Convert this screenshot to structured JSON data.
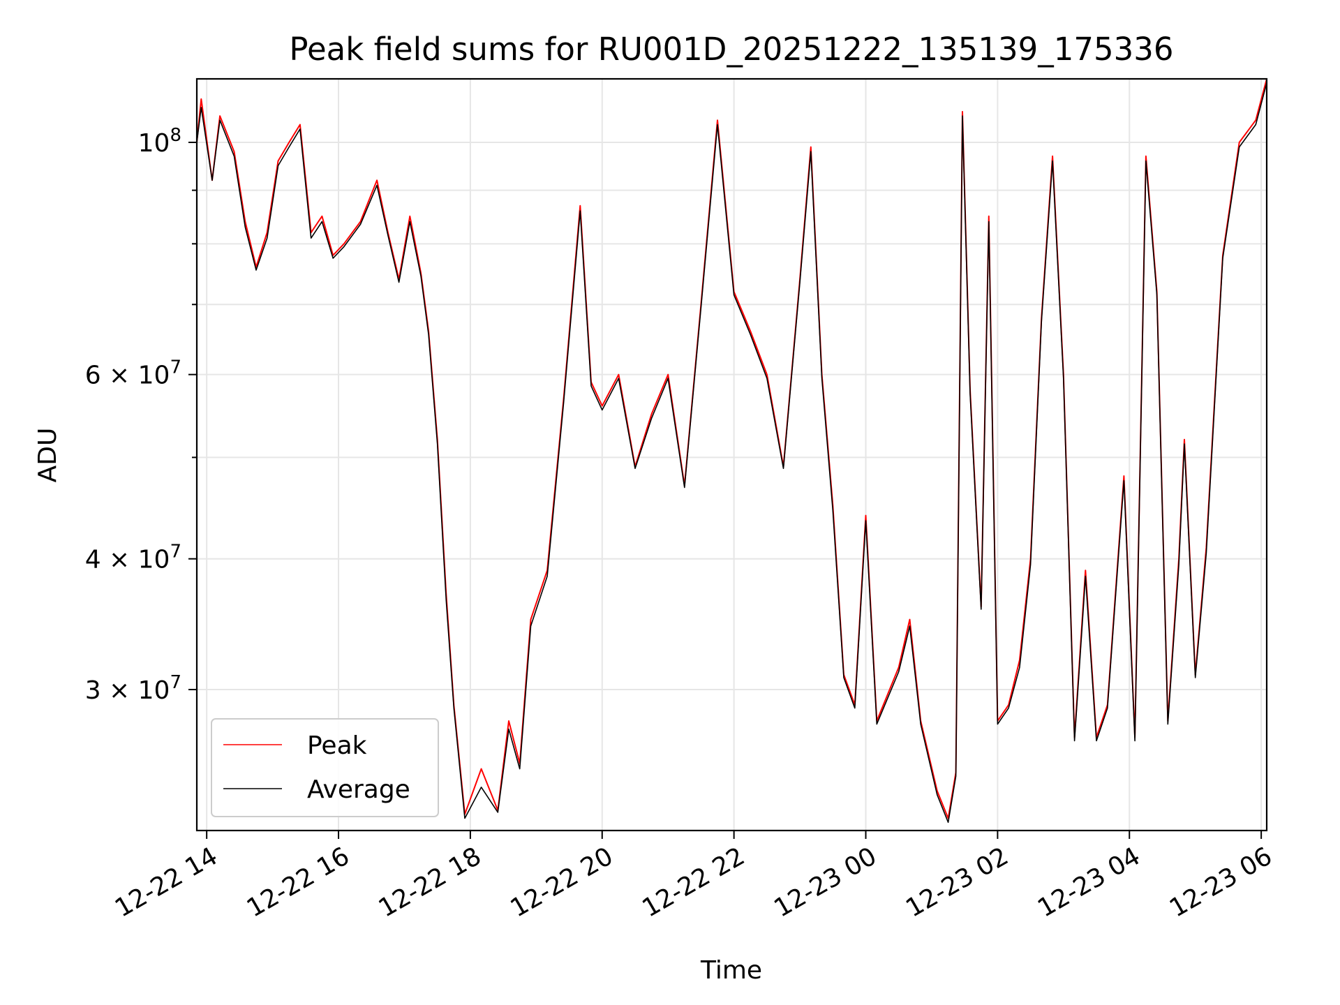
{
  "chart_data": {
    "type": "line",
    "title": "Peak field sums for RU001D_20251222_135139_175336",
    "xlabel": "Time",
    "ylabel": "ADU",
    "y_scale": "log",
    "xlim": [
      "2025-12-22 13:51",
      "2025-12-23 06:05"
    ],
    "ylim": [
      22000000,
      115000000
    ],
    "grid": true,
    "legend_position": "lower-left",
    "x_ticks": [
      {
        "value": "2025-12-22 14:00",
        "label": "12-22 14"
      },
      {
        "value": "2025-12-22 16:00",
        "label": "12-22 16"
      },
      {
        "value": "2025-12-22 18:00",
        "label": "12-22 18"
      },
      {
        "value": "2025-12-22 20:00",
        "label": "12-22 20"
      },
      {
        "value": "2025-12-22 22:00",
        "label": "12-22 22"
      },
      {
        "value": "2025-12-23 00:00",
        "label": "12-23 00"
      },
      {
        "value": "2025-12-23 02:00",
        "label": "12-23 02"
      },
      {
        "value": "2025-12-23 04:00",
        "label": "12-23 04"
      },
      {
        "value": "2025-12-23 06:00",
        "label": "12-23 06"
      }
    ],
    "y_major_ticks": [
      {
        "value": 30000000,
        "mantissa": "3",
        "exponent": "7"
      },
      {
        "value": 40000000,
        "mantissa": "4",
        "exponent": "7"
      },
      {
        "value": 60000000,
        "mantissa": "6",
        "exponent": "7"
      },
      {
        "value": 100000000,
        "mantissa": "",
        "exponent": "8"
      }
    ],
    "y_minor_ticks": [
      50000000,
      70000000,
      80000000,
      90000000
    ],
    "series": [
      {
        "name": "Peak",
        "color": "#ff0000",
        "points": [
          [
            "2025-12-22 13:51",
            100000000
          ],
          [
            "2025-12-22 13:55",
            110000000
          ],
          [
            "2025-12-22 14:05",
            92000000
          ],
          [
            "2025-12-22 14:12",
            106000000
          ],
          [
            "2025-12-22 14:25",
            98000000
          ],
          [
            "2025-12-22 14:35",
            84000000
          ],
          [
            "2025-12-22 14:45",
            76000000
          ],
          [
            "2025-12-22 14:55",
            82000000
          ],
          [
            "2025-12-22 15:05",
            96000000
          ],
          [
            "2025-12-22 15:15",
            100000000
          ],
          [
            "2025-12-22 15:25",
            104000000
          ],
          [
            "2025-12-22 15:35",
            82000000
          ],
          [
            "2025-12-22 15:45",
            85000000
          ],
          [
            "2025-12-22 15:55",
            78000000
          ],
          [
            "2025-12-22 16:05",
            80000000
          ],
          [
            "2025-12-22 16:20",
            84000000
          ],
          [
            "2025-12-22 16:35",
            92000000
          ],
          [
            "2025-12-22 16:45",
            82000000
          ],
          [
            "2025-12-22 16:55",
            74000000
          ],
          [
            "2025-12-22 17:05",
            85000000
          ],
          [
            "2025-12-22 17:15",
            75000000
          ],
          [
            "2025-12-22 17:22",
            66000000
          ],
          [
            "2025-12-22 17:30",
            52000000
          ],
          [
            "2025-12-22 17:38",
            37000000
          ],
          [
            "2025-12-22 17:45",
            29000000
          ],
          [
            "2025-12-22 17:55",
            22800000
          ],
          [
            "2025-12-22 18:10",
            25200000
          ],
          [
            "2025-12-22 18:25",
            23000000
          ],
          [
            "2025-12-22 18:35",
            28000000
          ],
          [
            "2025-12-22 18:45",
            25500000
          ],
          [
            "2025-12-22 18:55",
            35000000
          ],
          [
            "2025-12-22 19:10",
            39000000
          ],
          [
            "2025-12-22 19:25",
            57000000
          ],
          [
            "2025-12-22 19:40",
            87000000
          ],
          [
            "2025-12-22 19:50",
            59000000
          ],
          [
            "2025-12-22 20:00",
            56000000
          ],
          [
            "2025-12-22 20:15",
            60000000
          ],
          [
            "2025-12-22 20:30",
            49000000
          ],
          [
            "2025-12-22 20:45",
            55000000
          ],
          [
            "2025-12-22 21:00",
            60000000
          ],
          [
            "2025-12-22 21:15",
            47000000
          ],
          [
            "2025-12-22 21:30",
            70000000
          ],
          [
            "2025-12-22 21:45",
            105000000
          ],
          [
            "2025-12-22 22:00",
            72000000
          ],
          [
            "2025-12-22 22:15",
            66000000
          ],
          [
            "2025-12-22 22:30",
            60000000
          ],
          [
            "2025-12-22 22:45",
            49000000
          ],
          [
            "2025-12-22 23:00",
            74000000
          ],
          [
            "2025-12-22 23:10",
            99000000
          ],
          [
            "2025-12-22 23:20",
            60000000
          ],
          [
            "2025-12-22 23:30",
            45000000
          ],
          [
            "2025-12-22 23:40",
            31000000
          ],
          [
            "2025-12-22 23:50",
            29000000
          ],
          [
            "2025-12-23 00:00",
            44000000
          ],
          [
            "2025-12-23 00:10",
            28000000
          ],
          [
            "2025-12-23 00:30",
            31500000
          ],
          [
            "2025-12-23 00:40",
            35000000
          ],
          [
            "2025-12-23 00:50",
            28000000
          ],
          [
            "2025-12-23 01:05",
            24000000
          ],
          [
            "2025-12-23 01:15",
            22600000
          ],
          [
            "2025-12-23 01:22",
            25000000
          ],
          [
            "2025-12-23 01:28",
            107000000
          ],
          [
            "2025-12-23 01:35",
            58000000
          ],
          [
            "2025-12-23 01:45",
            36000000
          ],
          [
            "2025-12-23 01:52",
            85000000
          ],
          [
            "2025-12-23 02:00",
            28000000
          ],
          [
            "2025-12-23 02:10",
            29000000
          ],
          [
            "2025-12-23 02:20",
            32000000
          ],
          [
            "2025-12-23 02:30",
            40000000
          ],
          [
            "2025-12-23 02:40",
            68000000
          ],
          [
            "2025-12-23 02:50",
            97000000
          ],
          [
            "2025-12-23 03:00",
            60000000
          ],
          [
            "2025-12-23 03:10",
            27000000
          ],
          [
            "2025-12-23 03:20",
            39000000
          ],
          [
            "2025-12-23 03:30",
            27000000
          ],
          [
            "2025-12-23 03:40",
            29000000
          ],
          [
            "2025-12-23 03:55",
            48000000
          ],
          [
            "2025-12-23 04:05",
            27000000
          ],
          [
            "2025-12-23 04:15",
            97000000
          ],
          [
            "2025-12-23 04:25",
            72000000
          ],
          [
            "2025-12-23 04:35",
            28000000
          ],
          [
            "2025-12-23 04:45",
            40000000
          ],
          [
            "2025-12-23 04:50",
            52000000
          ],
          [
            "2025-12-23 05:00",
            31000000
          ],
          [
            "2025-12-23 05:10",
            41000000
          ],
          [
            "2025-12-23 05:25",
            78000000
          ],
          [
            "2025-12-23 05:40",
            100000000
          ],
          [
            "2025-12-23 05:55",
            105000000
          ],
          [
            "2025-12-23 06:05",
            115000000
          ]
        ]
      },
      {
        "name": "Average",
        "color": "#000000",
        "points": [
          [
            "2025-12-22 13:51",
            100000000
          ],
          [
            "2025-12-22 13:55",
            108000000
          ],
          [
            "2025-12-22 14:05",
            92000000
          ],
          [
            "2025-12-22 14:12",
            105000000
          ],
          [
            "2025-12-22 14:25",
            97000000
          ],
          [
            "2025-12-22 14:35",
            83000000
          ],
          [
            "2025-12-22 14:45",
            75500000
          ],
          [
            "2025-12-22 14:55",
            81000000
          ],
          [
            "2025-12-22 15:05",
            95000000
          ],
          [
            "2025-12-22 15:15",
            99000000
          ],
          [
            "2025-12-22 15:25",
            103000000
          ],
          [
            "2025-12-22 15:35",
            81000000
          ],
          [
            "2025-12-22 15:45",
            84000000
          ],
          [
            "2025-12-22 15:55",
            77500000
          ],
          [
            "2025-12-22 16:05",
            79500000
          ],
          [
            "2025-12-22 16:20",
            83500000
          ],
          [
            "2025-12-22 16:35",
            91000000
          ],
          [
            "2025-12-22 16:45",
            81500000
          ],
          [
            "2025-12-22 16:55",
            73500000
          ],
          [
            "2025-12-22 17:05",
            84000000
          ],
          [
            "2025-12-22 17:15",
            74500000
          ],
          [
            "2025-12-22 17:22",
            65500000
          ],
          [
            "2025-12-22 17:30",
            51500000
          ],
          [
            "2025-12-22 17:38",
            36500000
          ],
          [
            "2025-12-22 17:45",
            28800000
          ],
          [
            "2025-12-22 17:55",
            22600000
          ],
          [
            "2025-12-22 18:10",
            24200000
          ],
          [
            "2025-12-22 18:25",
            22900000
          ],
          [
            "2025-12-22 18:35",
            27500000
          ],
          [
            "2025-12-22 18:45",
            25200000
          ],
          [
            "2025-12-22 18:55",
            34500000
          ],
          [
            "2025-12-22 19:10",
            38500000
          ],
          [
            "2025-12-22 19:25",
            56500000
          ],
          [
            "2025-12-22 19:40",
            86000000
          ],
          [
            "2025-12-22 19:50",
            58500000
          ],
          [
            "2025-12-22 20:00",
            55500000
          ],
          [
            "2025-12-22 20:15",
            59500000
          ],
          [
            "2025-12-22 20:30",
            48800000
          ],
          [
            "2025-12-22 20:45",
            54500000
          ],
          [
            "2025-12-22 21:00",
            59500000
          ],
          [
            "2025-12-22 21:15",
            46800000
          ],
          [
            "2025-12-22 21:30",
            69500000
          ],
          [
            "2025-12-22 21:45",
            104000000
          ],
          [
            "2025-12-22 22:00",
            71500000
          ],
          [
            "2025-12-22 22:15",
            65500000
          ],
          [
            "2025-12-22 22:30",
            59500000
          ],
          [
            "2025-12-22 22:45",
            48800000
          ],
          [
            "2025-12-22 23:00",
            73500000
          ],
          [
            "2025-12-22 23:10",
            98000000
          ],
          [
            "2025-12-22 23:20",
            59500000
          ],
          [
            "2025-12-22 23:30",
            44500000
          ],
          [
            "2025-12-22 23:40",
            30800000
          ],
          [
            "2025-12-22 23:50",
            28800000
          ],
          [
            "2025-12-23 00:00",
            43500000
          ],
          [
            "2025-12-23 00:10",
            27800000
          ],
          [
            "2025-12-23 00:30",
            31200000
          ],
          [
            "2025-12-23 00:40",
            34500000
          ],
          [
            "2025-12-23 00:50",
            27800000
          ],
          [
            "2025-12-23 01:05",
            23800000
          ],
          [
            "2025-12-23 01:15",
            22400000
          ],
          [
            "2025-12-23 01:22",
            24800000
          ],
          [
            "2025-12-23 01:28",
            106000000
          ],
          [
            "2025-12-23 01:35",
            57500000
          ],
          [
            "2025-12-23 01:45",
            35800000
          ],
          [
            "2025-12-23 01:52",
            84000000
          ],
          [
            "2025-12-23 02:00",
            27800000
          ],
          [
            "2025-12-23 02:10",
            28800000
          ],
          [
            "2025-12-23 02:20",
            31500000
          ],
          [
            "2025-12-23 02:30",
            39500000
          ],
          [
            "2025-12-23 02:40",
            67500000
          ],
          [
            "2025-12-23 02:50",
            96000000
          ],
          [
            "2025-12-23 03:00",
            59500000
          ],
          [
            "2025-12-23 03:10",
            26800000
          ],
          [
            "2025-12-23 03:20",
            38500000
          ],
          [
            "2025-12-23 03:30",
            26800000
          ],
          [
            "2025-12-23 03:40",
            28800000
          ],
          [
            "2025-12-23 03:55",
            47500000
          ],
          [
            "2025-12-23 04:05",
            26800000
          ],
          [
            "2025-12-23 04:15",
            96000000
          ],
          [
            "2025-12-23 04:25",
            71500000
          ],
          [
            "2025-12-23 04:35",
            27800000
          ],
          [
            "2025-12-23 04:45",
            39500000
          ],
          [
            "2025-12-23 04:50",
            51500000
          ],
          [
            "2025-12-23 05:00",
            30800000
          ],
          [
            "2025-12-23 05:10",
            40500000
          ],
          [
            "2025-12-23 05:25",
            77500000
          ],
          [
            "2025-12-23 05:40",
            99000000
          ],
          [
            "2025-12-23 05:55",
            104000000
          ],
          [
            "2025-12-23 06:05",
            114000000
          ]
        ]
      }
    ]
  }
}
